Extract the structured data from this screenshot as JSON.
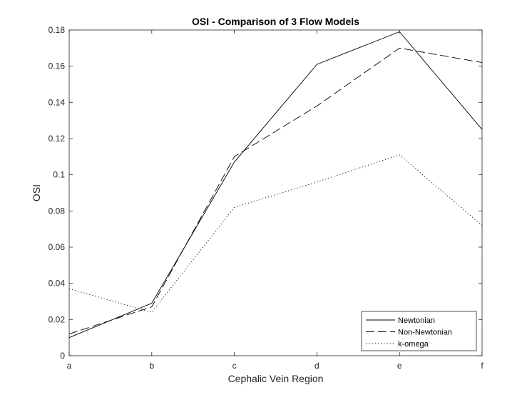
{
  "chart_data": {
    "type": "line",
    "title": "OSI - Comparison of 3 Flow Models",
    "xlabel": "Cephalic Vein Region",
    "ylabel": "OSI",
    "categories": [
      "a",
      "b",
      "c",
      "d",
      "e",
      "f"
    ],
    "ylim": [
      0,
      0.18
    ],
    "yticks": [
      "0",
      "0.02",
      "0.04",
      "0.06",
      "0.08",
      "0.1",
      "0.12",
      "0.14",
      "0.16",
      "0.18"
    ],
    "grid": false,
    "legend_position": "bottom-right",
    "series": [
      {
        "name": "Newtonian",
        "line_style": "solid",
        "values": [
          0.01,
          0.029,
          0.107,
          0.161,
          0.179,
          0.125
        ]
      },
      {
        "name": "Non-Newtonian",
        "line_style": "dashed",
        "values": [
          0.012,
          0.027,
          0.11,
          0.138,
          0.17,
          0.162
        ]
      },
      {
        "name": "k-omega",
        "line_style": "dotted",
        "values": [
          0.037,
          0.024,
          0.082,
          0.096,
          0.111,
          0.072
        ]
      }
    ],
    "colors": {
      "line": "#000000",
      "axis": "#262626",
      "background": "#ffffff"
    }
  }
}
